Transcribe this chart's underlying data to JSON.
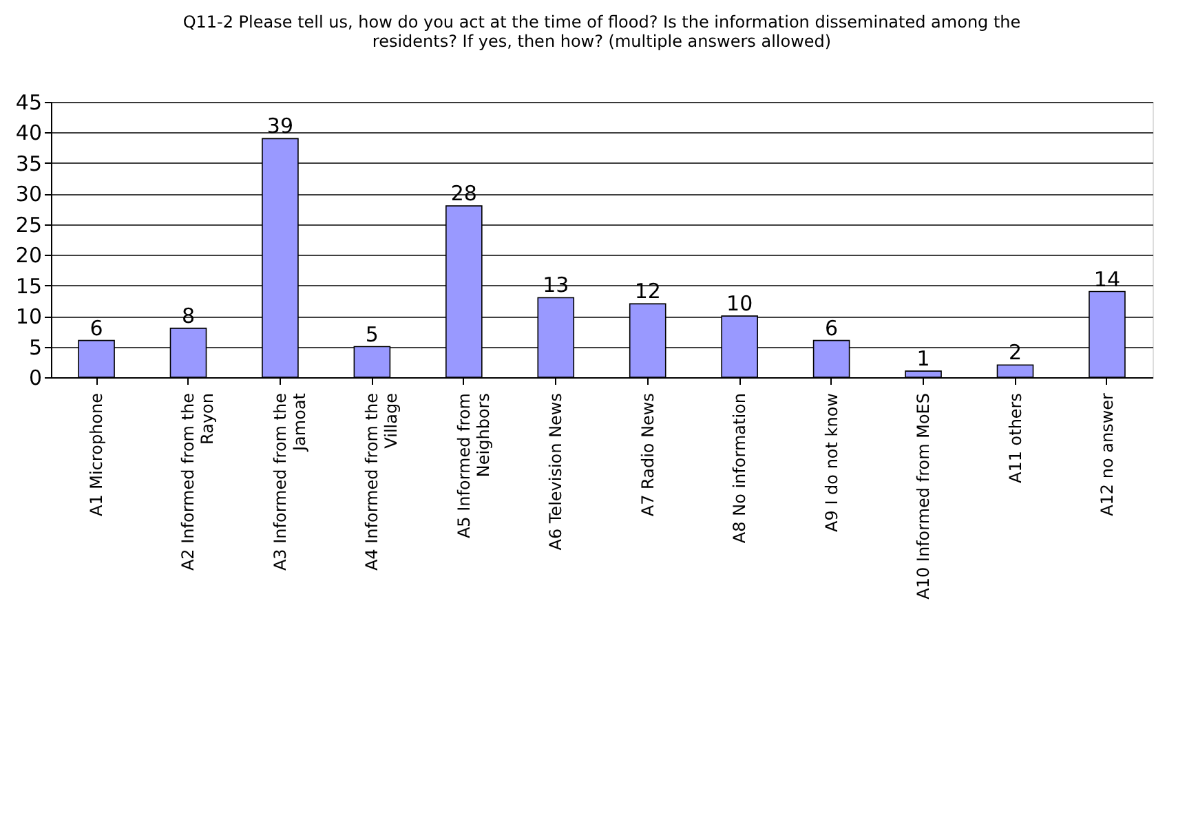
{
  "chart_data": {
    "type": "bar",
    "title": "Q11-2 Please tell us, how do you act at the time of flood? Is the information disseminated among the residents? If yes, then how? (multiple answers allowed)",
    "categories": [
      "A1 Microphone",
      "A2 Informed from the Rayon",
      "A3 Informed from the Jamoat",
      "A4 Informed from the Village",
      "A5 Informed from Neighbors",
      "A6 Television News",
      "A7 Radio News",
      "A8 No information",
      "A9 I do not know",
      "A10 Informed from MoES",
      "A11 others",
      "A12 no answer"
    ],
    "values": [
      6,
      8,
      39,
      5,
      28,
      13,
      12,
      10,
      6,
      1,
      2,
      14
    ],
    "color": "#9999ff",
    "ylim": [
      0,
      45
    ],
    "yticks": [
      0,
      5,
      10,
      15,
      20,
      25,
      30,
      35,
      40,
      45
    ],
    "grid": "y",
    "data_labels": true
  }
}
